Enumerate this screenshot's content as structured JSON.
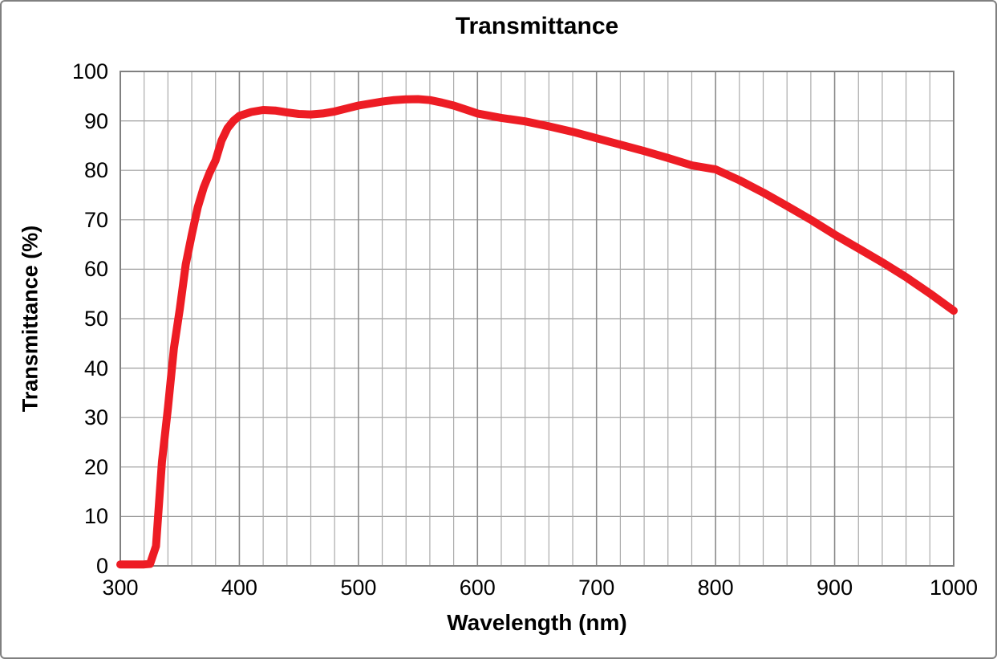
{
  "page": {
    "background": "#ffffff",
    "border_color": "#808080"
  },
  "colors": {
    "series_red": "#ed1c24",
    "grid_minor": "#ababab",
    "grid_horizontal": "#9e9e9e",
    "grid_major": "#8a8a8a",
    "plot_frame": "#808080",
    "text": "#000000"
  },
  "chart_data": {
    "type": "line",
    "title": "Transmittance",
    "xlabel": "Wavelength (nm)",
    "ylabel": "Transmittance (%)",
    "xlim": [
      300,
      1000
    ],
    "ylim": [
      0,
      100
    ],
    "x_major_ticks": [
      300,
      400,
      500,
      600,
      700,
      800,
      900,
      1000
    ],
    "x_minor_step": 20,
    "y_ticks": [
      0,
      10,
      20,
      30,
      40,
      50,
      60,
      70,
      80,
      90,
      100
    ],
    "grid": "horizontal major every 10, vertical minor every 20 nm, vertical major every 100 nm",
    "legend": "none",
    "series": [
      {
        "name": "Transmittance",
        "color": "#ed1c24",
        "x": [
          300,
          305,
          310,
          315,
          320,
          325,
          330,
          335,
          340,
          345,
          350,
          355,
          360,
          365,
          370,
          375,
          380,
          385,
          390,
          395,
          400,
          410,
          420,
          430,
          440,
          450,
          460,
          470,
          480,
          490,
          500,
          510,
          520,
          530,
          540,
          550,
          560,
          570,
          580,
          590,
          600,
          620,
          640,
          660,
          680,
          700,
          720,
          740,
          760,
          780,
          800,
          820,
          840,
          860,
          880,
          900,
          920,
          940,
          960,
          980,
          1000
        ],
        "y": [
          0.3,
          0.3,
          0.3,
          0.3,
          0.3,
          0.4,
          4,
          21,
          32,
          44,
          52,
          61,
          67,
          72.5,
          76.5,
          79.5,
          82,
          86,
          88.5,
          90,
          91,
          91.8,
          92.2,
          92.1,
          91.7,
          91.4,
          91.3,
          91.5,
          91.9,
          92.5,
          93.1,
          93.5,
          93.9,
          94.2,
          94.35,
          94.4,
          94.2,
          93.7,
          93.1,
          92.3,
          91.5,
          90.6,
          89.9,
          88.9,
          87.8,
          86.5,
          85.2,
          83.9,
          82.5,
          81,
          80.2,
          78,
          75.5,
          72.8,
          70,
          67,
          64.2,
          61.4,
          58.4,
          55.1,
          51.6
        ]
      }
    ]
  }
}
